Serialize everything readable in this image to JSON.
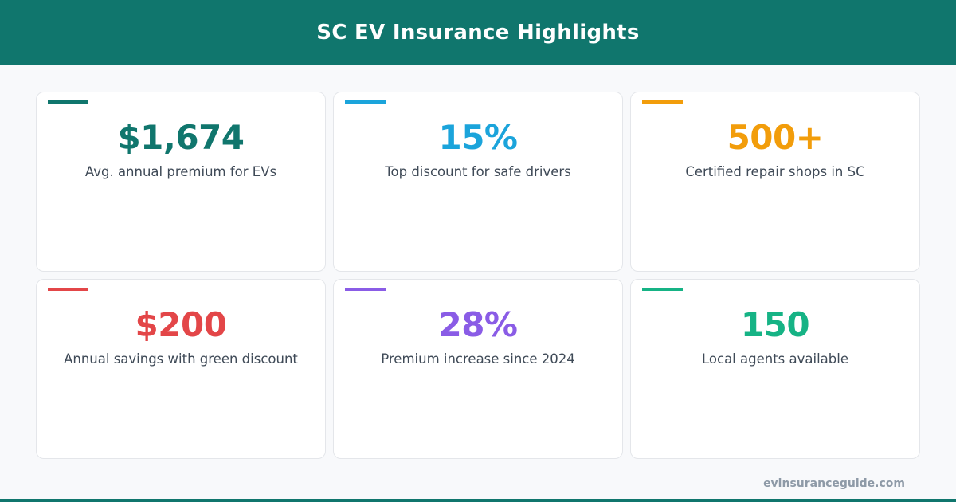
{
  "header": {
    "title": "SC EV Insurance Highlights",
    "background_color": "#10766d"
  },
  "cards": [
    {
      "value": "$1,674",
      "label": "Avg. annual premium for EVs",
      "color": "#10766d"
    },
    {
      "value": "15%",
      "label": "Top discount for safe drivers",
      "color": "#1ba4db"
    },
    {
      "value": "500+",
      "label": "Certified repair shops in SC",
      "color": "#f29d0b"
    },
    {
      "value": "$200",
      "label": "Annual savings with green discount",
      "color": "#e34648"
    },
    {
      "value": "28%",
      "label": "Premium increase since 2024",
      "color": "#8a5ce6"
    },
    {
      "value": "150",
      "label": "Local agents available",
      "color": "#16b385"
    }
  ],
  "footer": {
    "url": "evinsuranceguide.com",
    "bar_color": "#10766d"
  }
}
